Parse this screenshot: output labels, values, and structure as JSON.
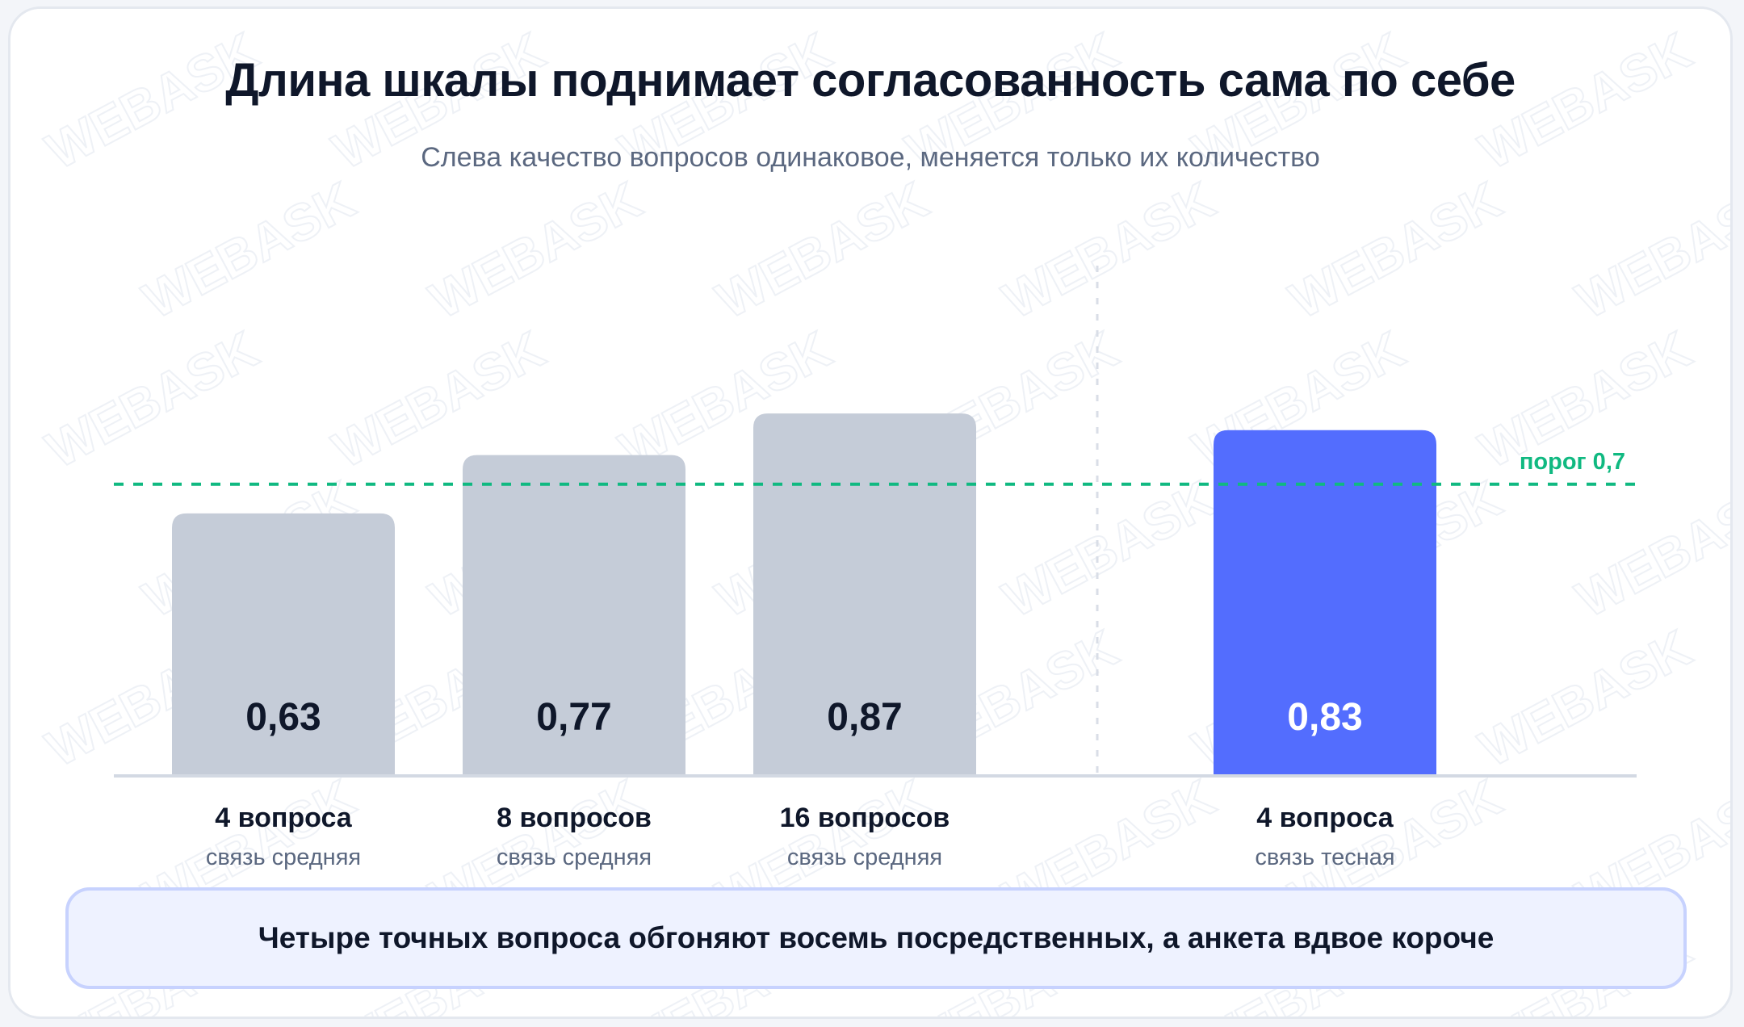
{
  "header": {
    "title": "Длина шкалы поднимает согласованность сама по себе",
    "subtitle": "Слева качество вопросов одинаковое, меняется только их количество"
  },
  "watermark": {
    "text": "WEBASK"
  },
  "chart_data": {
    "type": "bar",
    "categories": [
      "4 вопроса",
      "8 вопросов",
      "16 вопросов",
      "4 вопроса"
    ],
    "sublabels": [
      "связь средняя",
      "связь средняя",
      "связь средняя",
      "связь тесная"
    ],
    "values": [
      0.63,
      0.77,
      0.87,
      0.83
    ],
    "value_labels": [
      "0,63",
      "0,77",
      "0,87",
      "0,83"
    ],
    "highlight_index": 3,
    "threshold": {
      "value": 0.7,
      "label": "порог 0,7"
    },
    "colors": {
      "bar": "#c5ccd8",
      "highlight": "#536dfe",
      "threshold": "#10b981",
      "axis": "#d3d9e3"
    }
  },
  "summary": {
    "text": "Четыре точных вопроса обгоняют восемь посредственных, а анкета вдвое короче"
  }
}
